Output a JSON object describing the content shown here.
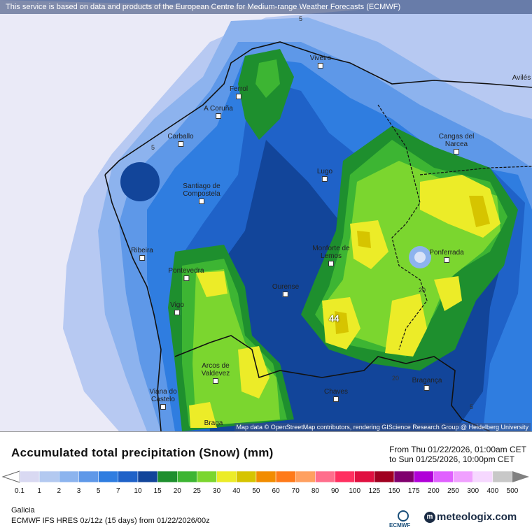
{
  "notice": "This service is based on data and products of the European Centre for Medium-range Weather Forecasts (ECMWF)",
  "attribution": "Map data © OpenStreetMap contributors, rendering GIScience Research Group @ Heidelberg University",
  "max_value": "44",
  "contour_labels": [
    "5",
    "5",
    "20",
    "20",
    "5"
  ],
  "cities": [
    "Viveiro",
    "Avilés",
    "Ferrol",
    "A Coruña",
    "Carballo",
    "Cangas del Narcea",
    "Lugo",
    "Santiago de Compostela",
    "Monforte de Lemos",
    "Ponferrada",
    "Ribeira",
    "Pontevedra",
    "Ourense",
    "Vigo",
    "Arcos de Valdevez",
    "Chaves",
    "Bragança",
    "Viana do Castelo",
    "Braga"
  ],
  "title": "Accumulated total precipitation (Snow) (mm)",
  "date_from": "From Thu 01/22/2026, 01:00am CET",
  "date_to": "to Sun 01/25/2026, 10:00pm CET",
  "legend": {
    "ticks": [
      "0.1",
      "1",
      "2",
      "3",
      "5",
      "7",
      "10",
      "15",
      "20",
      "25",
      "30",
      "40",
      "50",
      "60",
      "70",
      "80",
      "90",
      "100",
      "125",
      "150",
      "175",
      "200",
      "250",
      "300",
      "400",
      "500"
    ],
    "colors": [
      "#d9d9f2",
      "#b3c9f0",
      "#8cb4ee",
      "#5f98e8",
      "#2f7de0",
      "#1f62c8",
      "#12459a",
      "#1e8f2e",
      "#3db533",
      "#7bd62f",
      "#ecec28",
      "#d6c400",
      "#f28c00",
      "#ff7a1a",
      "#ffa060",
      "#ff6e8c",
      "#ff3060",
      "#e01040",
      "#a00020",
      "#80006e",
      "#b000d8",
      "#e060ff",
      "#f0a0ff",
      "#f6d8ff",
      "#c8c8c8"
    ]
  },
  "region": "Galicia",
  "model": "ECMWF IFS HRES 0z/12z (15 days) from  01/22/2026/00z",
  "ecmwf_logo": "ECMWF",
  "brand": "meteologix.com"
}
